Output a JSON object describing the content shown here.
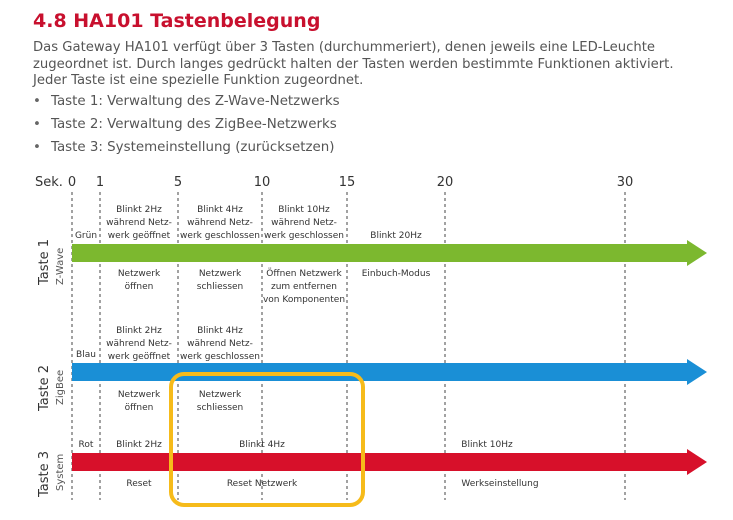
{
  "heading": "4.8 HA101 Tastenbelegung",
  "intro_lines": [
    "Das Gateway HA101 verfügt über 3 Tasten (durchummeriert), denen jeweils eine LED-Leuchte",
    "zugeordnet ist. Durch langes gedrückt halten der Tasten werden bestimmte Funktionen aktiviert.",
    "Jeder Taste ist eine spezielle Funktion zugeordnet."
  ],
  "bullets": [
    "Taste 1: Verwaltung des Z-Wave-Netzwerks",
    "Taste 2: Verwaltung des ZigBee-Netzwerks",
    "Taste 3: Systemeinstellung (zurücksetzen)"
  ],
  "timeline": {
    "axis_label": "Sek.",
    "ticks": [
      "0",
      "1",
      "5",
      "10",
      "15",
      "20",
      "30"
    ],
    "rows": [
      {
        "name": "Taste 1",
        "sub": "Z-Wave",
        "color": "#7cb82f",
        "led": "Grün",
        "top": [
          [
            "Blinkt 2Hz",
            "während Netz-",
            "werk geöffnet"
          ],
          [
            "Blinkt 4Hz",
            "während Netz-",
            "werk geschlossen"
          ],
          [
            "Blinkt 10Hz",
            "während Netz-",
            "werk geschlossen"
          ],
          [
            "Blinkt 20Hz"
          ]
        ],
        "bottom": [
          [
            "Netzwerk",
            "öffnen"
          ],
          [
            "Netzwerk",
            "schliessen"
          ],
          [
            "Öffnen Netzwerk",
            "zum entfernen",
            "von Komponenten"
          ],
          [
            "Einbuch-Modus"
          ]
        ]
      },
      {
        "name": "Taste 2",
        "sub": "ZigBee",
        "color": "#1a8fd6",
        "led": "Blau",
        "top": [
          [
            "Blinkt 2Hz",
            "während Netz-",
            "werk geöffnet"
          ],
          [
            "Blinkt 4Hz",
            "während Netz-",
            "werk geschlossen"
          ]
        ],
        "bottom": [
          [
            "Netzwerk",
            "öffnen"
          ],
          [
            "Netzwerk",
            "schliessen"
          ]
        ]
      },
      {
        "name": "Taste 3",
        "sub": "System",
        "color": "#d7102a",
        "led": "Rot",
        "top": [
          [
            "Blinkt 2Hz"
          ],
          [
            "Blinkt 4Hz"
          ],
          [
            "Blinkt 10Hz"
          ]
        ],
        "bottom": [
          [
            "Reset"
          ],
          [
            "Reset Netzwerk"
          ],
          [
            "Werkseinstellung"
          ]
        ]
      }
    ],
    "highlight_color": "#f6bb1a"
  }
}
